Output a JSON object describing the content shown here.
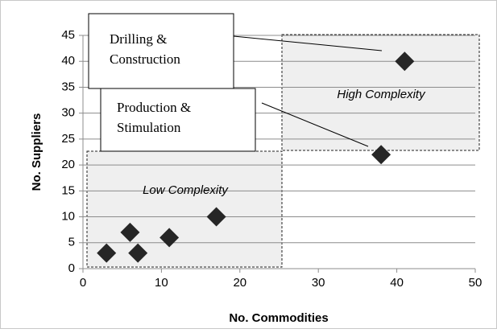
{
  "chart_data": {
    "type": "scatter",
    "x": [
      3,
      6,
      7,
      11,
      17,
      38,
      41
    ],
    "values": [
      3,
      7,
      3,
      6,
      10,
      22,
      40
    ],
    "color": "#262626",
    "xlim": [
      0,
      50
    ],
    "xticks": [
      0,
      10,
      20,
      30,
      40,
      50
    ],
    "ylim": [
      0,
      45
    ],
    "yticks": [
      0,
      5,
      10,
      15,
      20,
      25,
      30,
      35,
      40,
      45
    ],
    "grid": true,
    "xlabel": "No. Commodities",
    "ylabel": "No. Suppliers",
    "regions": [
      "High Complexity",
      "Low Complexity"
    ],
    "callouts": [
      [
        "Drilling &",
        "Construction"
      ],
      [
        "Production &",
        "Stimulation"
      ]
    ]
  }
}
